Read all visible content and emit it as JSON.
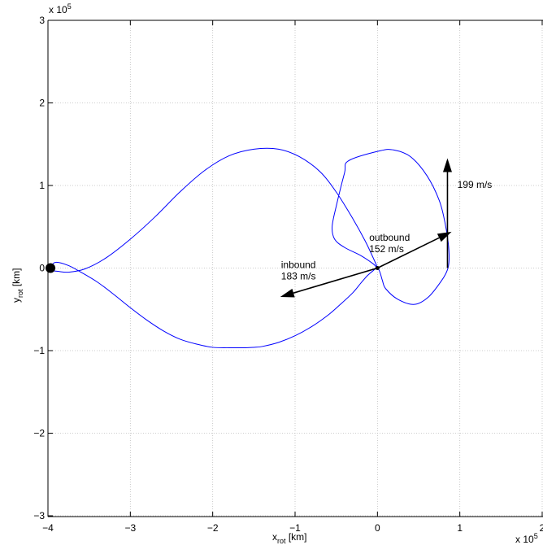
{
  "chart_data": {
    "type": "line",
    "xlabel": {
      "main": "x",
      "sub": "rot",
      "unit": " [km]"
    },
    "ylabel": {
      "main": "y",
      "sub": "rot",
      "unit": " [km]"
    },
    "x_multiplier": {
      "base": "x 10",
      "exp": "5"
    },
    "y_multiplier": {
      "base": "x 10",
      "exp": "5"
    },
    "xlim": [
      -4,
      2
    ],
    "ylim": [
      -3,
      3
    ],
    "xticks": [
      -4,
      -3,
      -2,
      -1,
      0,
      1,
      2
    ],
    "xtick_labels": [
      "−4",
      "−3",
      "−2",
      "−1",
      "0",
      "1",
      "2"
    ],
    "yticks": [
      -3,
      -2,
      -1,
      0,
      1,
      2,
      3
    ],
    "ytick_labels": [
      "−3",
      "−2",
      "−1",
      "0",
      "1",
      "2",
      "3"
    ],
    "grid": true,
    "line_color": "#0000ff",
    "series": [
      {
        "x": [
          -3.96,
          -3.9,
          -3.75,
          -3.6,
          -3.4,
          -3.2,
          -3.0,
          -2.8,
          -2.6,
          -2.4,
          -2.2,
          -2.0,
          -1.8,
          -1.6,
          -1.5,
          -1.4,
          -1.2,
          -1.0,
          -0.8,
          -0.6,
          -0.45,
          -0.3,
          -0.2,
          -0.12,
          -0.05,
          0.0,
          0.03,
          0.06,
          0.1,
          0.25,
          0.45,
          0.62,
          0.78,
          0.85,
          0.87,
          0.86,
          0.82,
          0.75,
          0.6,
          0.4,
          0.2,
          0.03,
          -0.35,
          -0.4,
          -0.5,
          -0.55,
          -0.52,
          -0.4,
          -0.2,
          -0.05,
          0.0,
          -0.05,
          -0.15,
          -0.3,
          -0.5,
          -0.7,
          -0.95,
          -1.2,
          -1.5,
          -1.8,
          -2.1,
          -2.4,
          -2.7,
          -3.0,
          -3.3,
          -3.55,
          -3.75,
          -3.88,
          -3.96
        ],
        "y": [
          0.03,
          0.07,
          0.03,
          -0.05,
          -0.17,
          -0.32,
          -0.48,
          -0.63,
          -0.76,
          -0.86,
          -0.92,
          -0.96,
          -0.965,
          -0.965,
          -0.96,
          -0.95,
          -0.9,
          -0.82,
          -0.71,
          -0.57,
          -0.44,
          -0.3,
          -0.18,
          -0.09,
          -0.03,
          0.0,
          -0.05,
          -0.15,
          -0.25,
          -0.38,
          -0.44,
          -0.35,
          -0.15,
          -0.02,
          0.1,
          0.3,
          0.55,
          0.82,
          1.12,
          1.35,
          1.43,
          1.42,
          1.3,
          1.15,
          0.75,
          0.5,
          0.35,
          0.25,
          0.15,
          0.05,
          0.0,
          0.12,
          0.33,
          0.6,
          0.92,
          1.17,
          1.35,
          1.44,
          1.44,
          1.36,
          1.18,
          0.92,
          0.62,
          0.35,
          0.12,
          -0.01,
          -0.05,
          -0.04,
          -0.03
        ]
      }
    ],
    "vectors": [
      {
        "label_lines": [
          "inbound",
          "183 m/s"
        ],
        "from": [
          0.0,
          0.0
        ],
        "to": [
          -1.18,
          -0.35
        ],
        "label_at": [
          -1.17,
          0.0
        ]
      },
      {
        "label_lines": [
          "outbound",
          "152 m/s"
        ],
        "from": [
          0.0,
          0.0
        ],
        "to": [
          0.9,
          0.44
        ],
        "label_at": [
          -0.1,
          0.33
        ]
      },
      {
        "label_lines": [
          "199 m/s"
        ],
        "from": [
          0.85,
          0.0
        ],
        "to": [
          0.85,
          1.33
        ],
        "label_at": [
          0.97,
          0.97
        ]
      }
    ],
    "markers": [
      {
        "name": "primary-body",
        "x": -3.97,
        "y": 0.0,
        "size": "large"
      },
      {
        "name": "secondary-body",
        "x": 0.0,
        "y": 0.0,
        "size": "small"
      }
    ]
  }
}
